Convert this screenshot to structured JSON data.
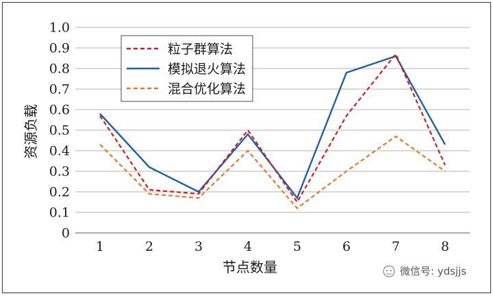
{
  "chart_data": {
    "type": "line",
    "title": "",
    "xlabel": "节点数量",
    "ylabel": "资源负载",
    "x": [
      1,
      2,
      3,
      4,
      5,
      6,
      7,
      8
    ],
    "ylim": [
      0,
      1.0
    ],
    "yticks": [
      "0",
      "0.1",
      "0.2",
      "0.3",
      "0.4",
      "0.5",
      "0.6",
      "0.7",
      "0.8",
      "0.9",
      "1.0"
    ],
    "xticks": [
      "1",
      "2",
      "3",
      "4",
      "5",
      "6",
      "7",
      "8"
    ],
    "grid": "horizontal",
    "legend_position": "top-left",
    "series": [
      {
        "name": "粒子群算法",
        "values": [
          0.57,
          0.21,
          0.19,
          0.5,
          0.15,
          0.57,
          0.87,
          0.33
        ],
        "color": "#d7191c",
        "style": "dashed"
      },
      {
        "name": "模拟退火算法",
        "values": [
          0.58,
          0.32,
          0.2,
          0.48,
          0.17,
          0.78,
          0.86,
          0.43
        ],
        "color": "#1f5fa8",
        "style": "solid"
      },
      {
        "name": "混合优化算法",
        "values": [
          0.43,
          0.19,
          0.17,
          0.4,
          0.12,
          0.3,
          0.47,
          0.3
        ],
        "color": "#e8772e",
        "style": "dashed"
      }
    ]
  },
  "watermark": {
    "text": "微信号: ydsjjs",
    "icon": "wechat-icon"
  }
}
